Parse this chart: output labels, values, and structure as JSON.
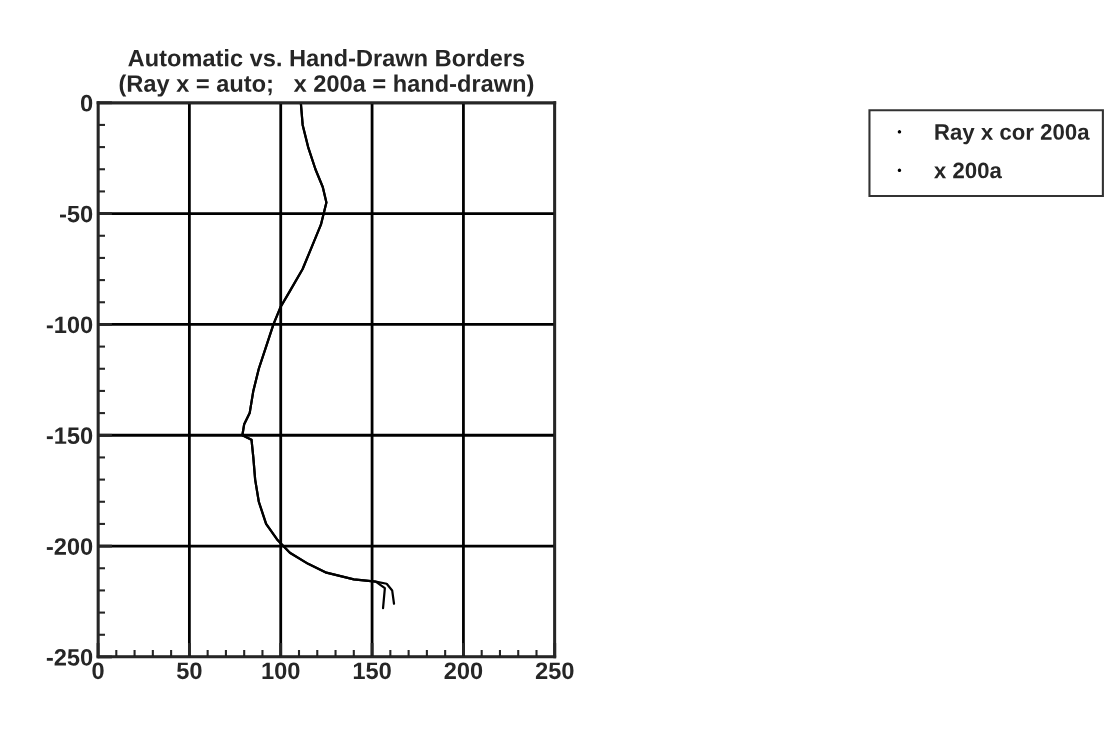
{
  "chart_data": {
    "type": "line",
    "title": "Automatic vs. Hand-Drawn Borders\n(Ray x = auto;   x 200a = hand-drawn)",
    "xlim": [
      0,
      250
    ],
    "xticks": [
      0,
      50,
      100,
      150,
      200,
      250
    ],
    "ylim": [
      -250,
      0
    ],
    "yticks": [
      -250,
      -200,
      -150,
      -100,
      -50,
      0
    ],
    "grid": true,
    "legend": "top right",
    "series": [
      {
        "name": "Ray x cor 200a",
        "color": "#000000",
        "x": [
          111,
          112,
          115,
          119,
          123,
          125,
          122,
          117,
          112,
          105,
          100,
          96,
          92,
          88,
          85,
          83,
          80,
          79,
          84,
          85,
          86,
          88,
          92,
          98,
          105,
          115,
          125,
          140,
          152,
          158,
          161,
          162
        ],
        "values": [
          0,
          -10,
          -20,
          -30,
          -38,
          -45,
          -55,
          -65,
          -75,
          -85,
          -92,
          -100,
          -110,
          -120,
          -130,
          -140,
          -145,
          -150,
          -152,
          -160,
          -170,
          -180,
          -190,
          -197,
          -203,
          -208,
          -212,
          -215,
          -216,
          -217,
          -220,
          -226
        ]
      },
      {
        "name": "x 200a",
        "color": "#000000",
        "x": [
          111,
          112,
          115,
          119,
          123,
          125,
          122,
          117,
          112,
          105,
          100,
          96,
          92,
          88,
          85,
          83,
          80,
          79,
          84,
          85,
          86,
          88,
          92,
          98,
          105,
          115,
          125,
          140,
          152,
          157,
          156
        ],
        "values": [
          0,
          -10,
          -20,
          -30,
          -38,
          -45,
          -55,
          -65,
          -75,
          -85,
          -92,
          -100,
          -110,
          -120,
          -130,
          -140,
          -145,
          -150,
          -152,
          -160,
          -170,
          -180,
          -190,
          -197,
          -203,
          -208,
          -212,
          -215,
          -216,
          -219,
          -228
        ]
      }
    ]
  }
}
